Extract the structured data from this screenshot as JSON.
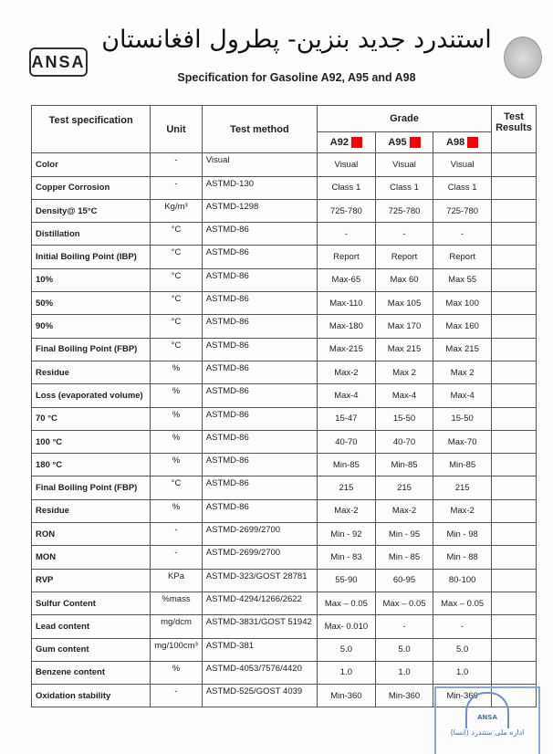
{
  "header": {
    "title_fa": "استندرد جدید بنزین- پطرول افغانستان",
    "title_en": "Specification for Gasoline A92, A95 and A98",
    "logo_text": "ANSA",
    "emblem": "afghanistan-emblem"
  },
  "table": {
    "headers": {
      "spec": "Test specification",
      "unit": "Unit",
      "method": "Test method",
      "grade": "Grade",
      "results": "Test Results",
      "grades": [
        "A92",
        "A95",
        "A98"
      ]
    },
    "marker_color": "#ff0000",
    "rows": [
      {
        "spec": "Color",
        "unit": "-",
        "method": "Visual",
        "a92": "Visual",
        "a95": "Visual",
        "a98": "Visual"
      },
      {
        "spec": "Copper Corrosion",
        "unit": "-",
        "method": "ASTMD-130",
        "a92": "Class  1",
        "a95": "Class  1",
        "a98": "Class  1"
      },
      {
        "spec": "Density@ 15°C",
        "unit": "Kg/m³",
        "method": "ASTMD-1298",
        "a92": "725-780",
        "a95": "725-780",
        "a98": "725-780"
      },
      {
        "spec": "Distillation",
        "unit": "°C",
        "method": "ASTMD-86",
        "a92": "-",
        "a95": "-",
        "a98": "-"
      },
      {
        "spec": "Initial Boiling Point (IBP)",
        "unit": "°C",
        "method": "ASTMD-86",
        "a92": "Report",
        "a95": "Report",
        "a98": "Report"
      },
      {
        "spec": "10%",
        "unit": "°C",
        "method": "ASTMD-86",
        "a92": "Max-65",
        "a95": "Max 60",
        "a98": "Max   55"
      },
      {
        "spec": "50%",
        "unit": "°C",
        "method": "ASTMD-86",
        "a92": "Max-110",
        "a95": "Max 105",
        "a98": "Max 100"
      },
      {
        "spec": "90%",
        "unit": "°C",
        "method": "ASTMD-86",
        "a92": "Max-180",
        "a95": "Max 170",
        "a98": "Max 160"
      },
      {
        "spec": "Final Boiling Point (FBP)",
        "unit": "°C",
        "method": "ASTMD-86",
        "a92": "Max-215",
        "a95": "Max 215",
        "a98": "Max 215"
      },
      {
        "spec": "Residue",
        "unit": "%",
        "method": "ASTMD-86",
        "a92": "Max-2",
        "a95": "Max 2",
        "a98": "Max 2"
      },
      {
        "spec": "Loss (evaporated volume)",
        "unit": "%",
        "method": "ASTMD-86",
        "a92": "Max-4",
        "a95": "Max-4",
        "a98": "Max-4"
      },
      {
        "spec": "70 °C",
        "unit": "%",
        "method": "ASTMD-86",
        "a92": "15-47",
        "a95": "15-50",
        "a98": "15-50"
      },
      {
        "spec": "100 °C",
        "unit": "%",
        "method": "ASTMD-86",
        "a92": "40-70",
        "a95": "40-70",
        "a98": "Max-70"
      },
      {
        "spec": "180 °C",
        "unit": "%",
        "method": "ASTMD-86",
        "a92": "Min-85",
        "a95": "Min-85",
        "a98": "Min-85"
      },
      {
        "spec": "Final Boiling Point (FBP)",
        "unit": "°C",
        "method": "ASTMD-86",
        "a92": "215",
        "a95": "215",
        "a98": "215"
      },
      {
        "spec": "Residue",
        "unit": "%",
        "method": "ASTMD-86",
        "a92": "Max-2",
        "a95": "Max-2",
        "a98": "Max-2"
      },
      {
        "spec": "RON",
        "unit": "-",
        "method": "ASTMD-2699/2700",
        "a92": "Min - 92",
        "a95": "Min - 95",
        "a98": "Min - 98"
      },
      {
        "spec": "MON",
        "unit": "-",
        "method": "ASTMD-2699/2700",
        "a92": "Min - 83",
        "a95": "Min - 85",
        "a98": "Min - 88"
      },
      {
        "spec": "RVP",
        "unit": "KPa",
        "method": "ASTMD-323/GOST 28781",
        "a92": "55-90",
        "a95": "60-95",
        "a98": "80-100"
      },
      {
        "spec": "Sulfur Content",
        "unit": "%mass",
        "method": "ASTMD-4294/1266/2622",
        "a92": "Max – 0.05",
        "a95": "Max – 0.05",
        "a98": "Max – 0.05"
      },
      {
        "spec": "Lead content",
        "unit": "mg/dcm",
        "method": "ASTMD-3831/GOST 51942",
        "a92": "Max-  0.010",
        "a95": "-",
        "a98": "-"
      },
      {
        "spec": "Gum content",
        "unit": "mg/100cm³",
        "method": "ASTMD-381",
        "a92": "5.0",
        "a95": "5.0",
        "a98": "5.0"
      },
      {
        "spec": "Benzene content",
        "unit": "%",
        "method": "ASTMD-4053/7576/4420",
        "a92": "1.0",
        "a95": "1.0",
        "a98": "1.0"
      },
      {
        "spec": "Oxidation stability",
        "unit": "-",
        "method": "ASTMD-525/GOST 4039",
        "a92": "Min-360",
        "a95": "Min-360",
        "a98": "Min-360"
      }
    ]
  },
  "stamp": {
    "logo": "ANSA",
    "text": "اداره ملی ستندرد (انسا)"
  }
}
